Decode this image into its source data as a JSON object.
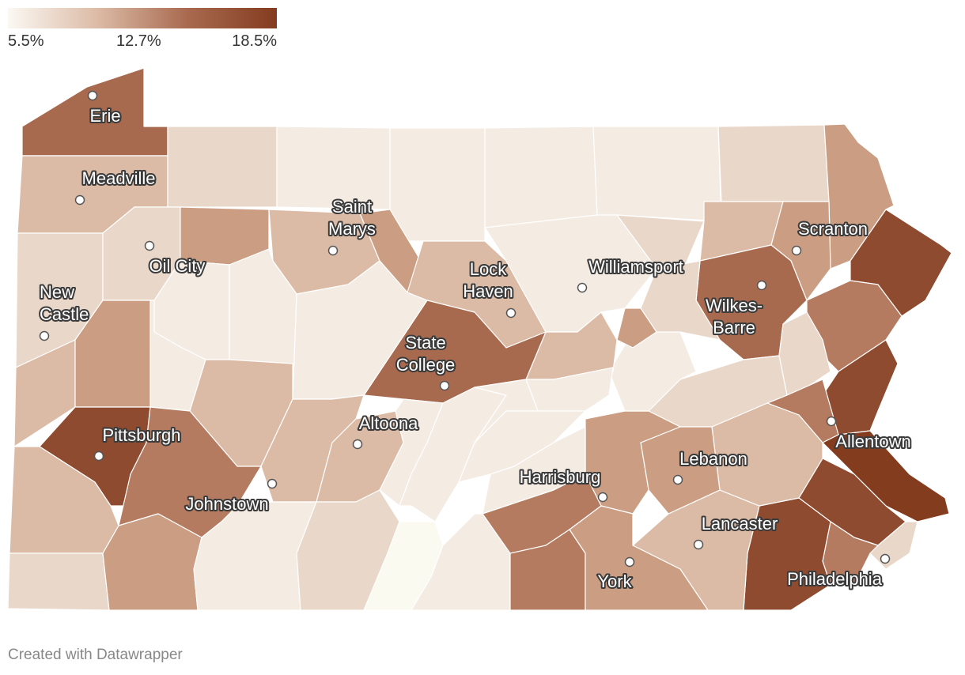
{
  "legend": {
    "min_label": "5.5%",
    "mid_label": "12.7%",
    "max_label": "18.5%",
    "colors": [
      "#fbf8f3",
      "#dcbba6",
      "#a86a4f",
      "#843c1f"
    ]
  },
  "palette": {
    "c1": "#f4ebe3",
    "c2": "#e9d7c9",
    "c3": "#dcbba6",
    "c4": "#cb9e84",
    "c5": "#b57b60",
    "c6": "#a86a4f",
    "c7": "#8f4b30",
    "c8": "#843c1f",
    "c0": "#fbfaf1"
  },
  "cities": [
    {
      "name": "Erie",
      "lines": [
        "Erie"
      ]
    },
    {
      "name": "Meadville",
      "lines": [
        "Meadville"
      ]
    },
    {
      "name": "Oil City",
      "lines": [
        "Oil City"
      ]
    },
    {
      "name": "New Castle",
      "lines": [
        "New",
        "Castle"
      ]
    },
    {
      "name": "Pittsburgh",
      "lines": [
        "Pittsburgh"
      ]
    },
    {
      "name": "Johnstown",
      "lines": [
        "Johnstown"
      ]
    },
    {
      "name": "Altoona",
      "lines": [
        "Altoona"
      ]
    },
    {
      "name": "Saint Marys",
      "lines": [
        "Saint",
        "Marys"
      ]
    },
    {
      "name": "State College",
      "lines": [
        "State",
        "College"
      ]
    },
    {
      "name": "Lock Haven",
      "lines": [
        "Lock",
        "Haven"
      ]
    },
    {
      "name": "Williamsport",
      "lines": [
        "Williamsport"
      ]
    },
    {
      "name": "Scranton",
      "lines": [
        "Scranton"
      ]
    },
    {
      "name": "Wilkes-Barre",
      "lines": [
        "Wilkes-",
        "Barre"
      ]
    },
    {
      "name": "Allentown",
      "lines": [
        "Allentown"
      ]
    },
    {
      "name": "Lebanon",
      "lines": [
        "Lebanon"
      ]
    },
    {
      "name": "Harrisburg",
      "lines": [
        "Harrisburg"
      ]
    },
    {
      "name": "Lancaster",
      "lines": [
        "Lancaster"
      ]
    },
    {
      "name": "York",
      "lines": [
        "York"
      ]
    },
    {
      "name": "Philadelphia",
      "lines": [
        "Philadelphia"
      ]
    }
  ],
  "credit": "Created with Datawrapper"
}
